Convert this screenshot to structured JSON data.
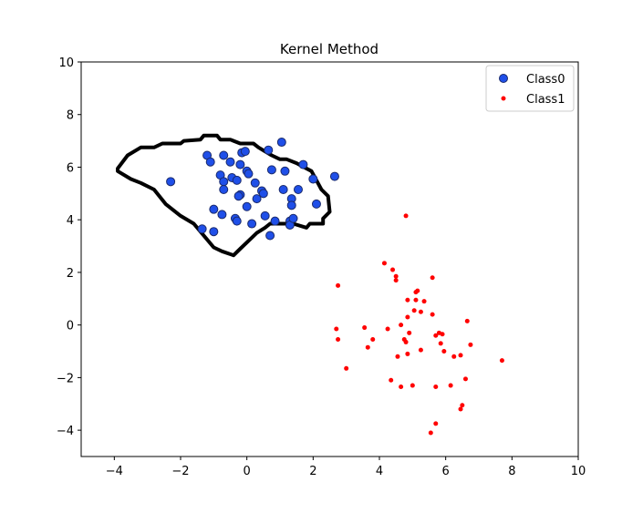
{
  "chart_data": {
    "type": "scatter",
    "title": "Kernel Method",
    "xlabel": "",
    "ylabel": "",
    "xlim": [
      -5,
      10
    ],
    "ylim": [
      -5,
      10
    ],
    "xticks": [
      -4,
      -2,
      0,
      2,
      4,
      6,
      8,
      10
    ],
    "yticks": [
      -4,
      -2,
      0,
      2,
      4,
      6,
      8,
      10
    ],
    "xtick_labels": [
      "−4",
      "−2",
      "0",
      "2",
      "4",
      "6",
      "8",
      "10"
    ],
    "ytick_labels": [
      "−4",
      "−2",
      "0",
      "2",
      "4",
      "6",
      "8",
      "10"
    ],
    "grid": false,
    "legend_position": "top-right",
    "series": [
      {
        "name": "Class0",
        "color": "#1f4fe8",
        "edge_color": "#1a2a6c",
        "marker": "large-circle",
        "points": [
          [
            -2.3,
            5.45
          ],
          [
            -1.2,
            6.45
          ],
          [
            -1.1,
            6.2
          ],
          [
            -0.8,
            5.7
          ],
          [
            -0.7,
            6.45
          ],
          [
            -0.7,
            5.45
          ],
          [
            -0.7,
            5.15
          ],
          [
            -0.5,
            6.2
          ],
          [
            -0.45,
            5.6
          ],
          [
            -0.3,
            5.5
          ],
          [
            -0.2,
            6.1
          ],
          [
            -0.15,
            6.55
          ],
          [
            -0.05,
            6.6
          ],
          [
            0.0,
            5.85
          ],
          [
            0.05,
            5.75
          ],
          [
            -0.2,
            4.95
          ],
          [
            -0.25,
            4.9
          ],
          [
            -1.0,
            4.4
          ],
          [
            -0.75,
            4.2
          ],
          [
            -0.35,
            4.05
          ],
          [
            -0.3,
            3.95
          ],
          [
            -1.35,
            3.65
          ],
          [
            -1.0,
            3.55
          ],
          [
            0.0,
            4.5
          ],
          [
            0.15,
            3.85
          ],
          [
            0.25,
            5.4
          ],
          [
            0.3,
            4.8
          ],
          [
            0.45,
            5.1
          ],
          [
            0.5,
            5.0
          ],
          [
            0.55,
            4.15
          ],
          [
            0.65,
            6.65
          ],
          [
            0.75,
            5.9
          ],
          [
            0.85,
            3.95
          ],
          [
            0.7,
            3.4
          ],
          [
            1.05,
            6.95
          ],
          [
            1.1,
            5.15
          ],
          [
            1.15,
            5.85
          ],
          [
            1.3,
            3.95
          ],
          [
            1.3,
            3.8
          ],
          [
            1.35,
            4.8
          ],
          [
            1.35,
            4.55
          ],
          [
            1.4,
            4.05
          ],
          [
            1.55,
            5.15
          ],
          [
            1.7,
            6.1
          ],
          [
            2.0,
            5.55
          ],
          [
            2.1,
            4.6
          ],
          [
            2.65,
            5.65
          ]
        ]
      },
      {
        "name": "Class1",
        "color": "#ff0000",
        "edge_color": "#ff0000",
        "marker": "small-dot",
        "points": [
          [
            4.8,
            4.15
          ],
          [
            4.15,
            2.35
          ],
          [
            4.4,
            2.1
          ],
          [
            4.5,
            1.85
          ],
          [
            4.5,
            1.7
          ],
          [
            5.6,
            1.8
          ],
          [
            2.75,
            1.5
          ],
          [
            5.15,
            1.3
          ],
          [
            5.1,
            1.25
          ],
          [
            4.85,
            0.95
          ],
          [
            5.1,
            0.95
          ],
          [
            5.35,
            0.9
          ],
          [
            5.05,
            0.55
          ],
          [
            5.25,
            0.5
          ],
          [
            5.6,
            0.4
          ],
          [
            4.85,
            0.3
          ],
          [
            4.65,
            0.0
          ],
          [
            6.65,
            0.15
          ],
          [
            2.7,
            -0.15
          ],
          [
            3.55,
            -0.1
          ],
          [
            4.25,
            -0.15
          ],
          [
            4.9,
            -0.3
          ],
          [
            5.8,
            -0.3
          ],
          [
            5.9,
            -0.35
          ],
          [
            5.7,
            -0.4
          ],
          [
            4.75,
            -0.55
          ],
          [
            4.8,
            -0.65
          ],
          [
            5.85,
            -0.7
          ],
          [
            6.75,
            -0.75
          ],
          [
            2.75,
            -0.55
          ],
          [
            3.8,
            -0.55
          ],
          [
            3.65,
            -0.85
          ],
          [
            5.25,
            -0.95
          ],
          [
            5.95,
            -1.0
          ],
          [
            4.85,
            -1.1
          ],
          [
            4.55,
            -1.2
          ],
          [
            6.25,
            -1.2
          ],
          [
            6.45,
            -1.15
          ],
          [
            7.7,
            -1.35
          ],
          [
            3.0,
            -1.65
          ],
          [
            4.35,
            -2.1
          ],
          [
            6.6,
            -2.05
          ],
          [
            4.65,
            -2.35
          ],
          [
            5.0,
            -2.3
          ],
          [
            5.7,
            -2.35
          ],
          [
            6.15,
            -2.3
          ],
          [
            6.5,
            -3.05
          ],
          [
            6.45,
            -3.2
          ],
          [
            5.7,
            -3.75
          ],
          [
            5.55,
            -4.1
          ]
        ]
      },
      {
        "name": "",
        "color": "#000000",
        "marker": "boundary",
        "points": [
          [
            -3.9,
            5.95
          ],
          [
            -3.6,
            6.45
          ],
          [
            -3.2,
            6.75
          ],
          [
            -2.8,
            6.75
          ],
          [
            -2.55,
            6.9
          ],
          [
            -2.0,
            6.9
          ],
          [
            -1.9,
            7.0
          ],
          [
            -1.4,
            7.05
          ],
          [
            -1.3,
            7.2
          ],
          [
            -0.9,
            7.2
          ],
          [
            -0.8,
            7.05
          ],
          [
            -0.5,
            7.05
          ],
          [
            -0.2,
            6.9
          ],
          [
            0.2,
            6.9
          ],
          [
            0.35,
            6.75
          ],
          [
            0.55,
            6.6
          ],
          [
            0.75,
            6.45
          ],
          [
            1.0,
            6.3
          ],
          [
            1.2,
            6.3
          ],
          [
            1.5,
            6.15
          ],
          [
            1.95,
            5.85
          ],
          [
            2.1,
            5.5
          ],
          [
            2.25,
            5.15
          ],
          [
            2.45,
            4.9
          ],
          [
            2.5,
            4.3
          ],
          [
            2.3,
            4.05
          ],
          [
            2.3,
            3.85
          ],
          [
            1.9,
            3.85
          ],
          [
            1.8,
            3.7
          ],
          [
            1.4,
            3.85
          ],
          [
            0.9,
            3.85
          ],
          [
            0.7,
            3.85
          ],
          [
            0.55,
            3.7
          ],
          [
            0.3,
            3.5
          ],
          [
            0.05,
            3.2
          ],
          [
            -0.2,
            2.9
          ],
          [
            -0.4,
            2.65
          ],
          [
            -0.75,
            2.8
          ],
          [
            -1.0,
            2.95
          ],
          [
            -1.4,
            3.55
          ],
          [
            -1.6,
            3.85
          ],
          [
            -2.0,
            4.15
          ],
          [
            -2.45,
            4.6
          ],
          [
            -2.8,
            5.15
          ],
          [
            -3.2,
            5.4
          ],
          [
            -3.5,
            5.55
          ],
          [
            -3.9,
            5.85
          ]
        ]
      }
    ]
  }
}
